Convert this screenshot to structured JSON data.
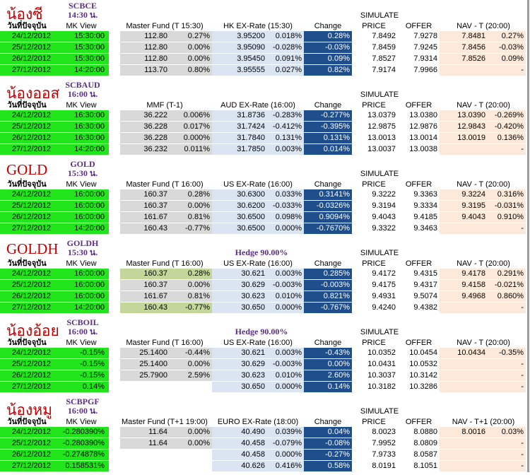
{
  "headers": {
    "date_label": "วันที่ปัจจุบัน",
    "mk_view": "MK View",
    "change": "Change",
    "price": "PRICE",
    "offer": "OFFER",
    "simulate": "SIMULATE"
  },
  "sections": [
    {
      "thai_name": "น้องซี",
      "code": "SCBCE",
      "time": "14:30 น.",
      "hedge": "",
      "fund_header": "Master Fund (T 15:30)",
      "fx_header": "HK EX-Rate (15:30)",
      "nav_header": "NAV - T (20:00)",
      "rows": [
        {
          "date": "24/12/2012",
          "mk": "15:30:00",
          "f1": "112.80",
          "f2": "0.27%",
          "x1": "3.95200",
          "x2": "0.018%",
          "chg": "0.28%",
          "price": "7.8492",
          "offer": "7.9278",
          "n1": "7.8481",
          "n2": "0.27%"
        },
        {
          "date": "25/12/2012",
          "mk": "15:30:00",
          "f1": "112.80",
          "f2": "0.00%",
          "x1": "3.95090",
          "x2": "-0.028%",
          "chg": "-0.03%",
          "price": "7.8459",
          "offer": "7.9245",
          "n1": "7.8456",
          "n2": "-0.03%"
        },
        {
          "date": "26/12/2012",
          "mk": "15:30:00",
          "f1": "112.80",
          "f2": "0.00%",
          "x1": "3.95450",
          "x2": "0.091%",
          "chg": "0.09%",
          "price": "7.8527",
          "offer": "7.9314",
          "n1": "7.8526",
          "n2": "0.09%"
        },
        {
          "date": "27/12/2012",
          "mk": "14:20:00",
          "f1": "113.70",
          "f2": "0.80%",
          "x1": "3.95555",
          "x2": "0.027%",
          "chg": "0.82%",
          "price": "7.9174",
          "offer": "7.9966",
          "n1": "",
          "n2": "-"
        }
      ]
    },
    {
      "thai_name": "น้องออส",
      "code": "SCBAUD",
      "time": "16:00 น.",
      "hedge": "",
      "fund_header": "MMF (T-1)",
      "fx_header": "AUD EX-Rate (16:00)",
      "nav_header": "NAV - T (20:00)",
      "rows": [
        {
          "date": "24/12/2012",
          "mk": "16:30:00",
          "f1": "36.222",
          "f2": "0.006%",
          "x1": "31.8736",
          "x2": "-0.283%",
          "chg": "-0.277%",
          "price": "13.0379",
          "offer": "13.0380",
          "n1": "13.0390",
          "n2": "-0.269%"
        },
        {
          "date": "25/12/2012",
          "mk": "16:30:00",
          "f1": "36.228",
          "f2": "0.017%",
          "x1": "31.7424",
          "x2": "-0.412%",
          "chg": "-0.395%",
          "price": "12.9875",
          "offer": "12.9876",
          "n1": "12.9843",
          "n2": "-0.420%"
        },
        {
          "date": "26/12/2012",
          "mk": "16:30:00",
          "f1": "36.228",
          "f2": "0.000%",
          "x1": "31.7840",
          "x2": "0.131%",
          "chg": "0.131%",
          "price": "13.0013",
          "offer": "13.0014",
          "n1": "13.0019",
          "n2": "0.136%"
        },
        {
          "date": "27/12/2012",
          "mk": "14:20:00",
          "f1": "36.232",
          "f2": "0.011%",
          "x1": "31.7850",
          "x2": "0.003%",
          "chg": "0.014%",
          "price": "13.0037",
          "offer": "13.0038",
          "n1": "",
          "n2": "-"
        }
      ]
    },
    {
      "thai_name": "GOLD",
      "code": "GOLD",
      "time": "15:30 น.",
      "hedge": "",
      "fund_header": "Master Fund (T 16:00)",
      "fx_header": "US EX-Rate (16:00)",
      "nav_header": "NAV - T (20:00)",
      "rows": [
        {
          "date": "24/12/2012",
          "mk": "16:00:00",
          "f1": "160.37",
          "f2": "0.28%",
          "x1": "30.6300",
          "x2": "0.033%",
          "chg": "0.3141%",
          "price": "9.3222",
          "offer": "9.3363",
          "n1": "9.3224",
          "n2": "0.316%"
        },
        {
          "date": "25/12/2012",
          "mk": "16:00:00",
          "f1": "160.37",
          "f2": "0.00%",
          "x1": "30.6200",
          "x2": "-0.033%",
          "chg": "-0.0326%",
          "price": "9.3194",
          "offer": "9.3334",
          "n1": "9.3195",
          "n2": "-0.031%"
        },
        {
          "date": "26/12/2012",
          "mk": "16:00:00",
          "f1": "161.67",
          "f2": "0.81%",
          "x1": "30.6500",
          "x2": "0.098%",
          "chg": "0.9094%",
          "price": "9.4043",
          "offer": "9.4185",
          "n1": "9.4043",
          "n2": "0.910%"
        },
        {
          "date": "27/12/2012",
          "mk": "14:20:00",
          "f1": "160.43",
          "f2": "-0.77%",
          "x1": "30.6500",
          "x2": "0.000%",
          "chg": "-0.7670%",
          "price": "9.3322",
          "offer": "9.3463",
          "n1": "",
          "n2": "-"
        }
      ]
    },
    {
      "thai_name": "GOLDH",
      "code": "GOLDH",
      "time": "15:30 น.",
      "hedge": "Hedge 90.00%",
      "fund_header": "Master Fund (T 16:00)",
      "fx_header": "US EX-Rate (16:00)",
      "nav_header": "NAV - T (20:00)",
      "rows": [
        {
          "date": "24/12/2012",
          "mk": "16:00:00",
          "f1": "160.37",
          "f2": "0.28%",
          "x1": "30.621",
          "x2": "0.003%",
          "chg": "0.285%",
          "price": "9.4172",
          "offer": "9.4315",
          "n1": "9.4178",
          "n2": "0.291%"
        },
        {
          "date": "25/12/2012",
          "mk": "16:00:00",
          "f1": "160.37",
          "f2": "0.00%",
          "x1": "30.629",
          "x2": "-0.003%",
          "chg": "-0.003%",
          "price": "9.4175",
          "offer": "9.4317",
          "n1": "9.4158",
          "n2": "-0.021%"
        },
        {
          "date": "26/12/2012",
          "mk": "16:00:00",
          "f1": "161.67",
          "f2": "0.81%",
          "x1": "30.623",
          "x2": "0.010%",
          "chg": "0.821%",
          "price": "9.4931",
          "offer": "9.5074",
          "n1": "9.4968",
          "n2": "0.860%"
        },
        {
          "date": "27/12/2012",
          "mk": "14:20:00",
          "f1": "160.43",
          "f2": "-0.77%",
          "x1": "30.650",
          "x2": "0.000%",
          "chg": "-0.767%",
          "price": "9.4240",
          "offer": "9.4382",
          "n1": "",
          "n2": "-"
        }
      ]
    },
    {
      "thai_name": "น้องอ้อย",
      "code": "SCBOIL",
      "time": "16:00 น.",
      "hedge": "Hedge 90.00%",
      "fund_header": "Master Fund (T 16:00)",
      "fx_header": "US EX-Rate (16:00)",
      "nav_header": "NAV - T (20:00)",
      "rows": [
        {
          "date": "24/12/2012",
          "mk": "-0.15%",
          "f1": "25.1400",
          "f2": "-0.44%",
          "x1": "30.621",
          "x2": "0.003%",
          "chg": "-0.43%",
          "price": "10.0352",
          "offer": "10.0454",
          "n1": "10.0434",
          "n2": "-0.35%"
        },
        {
          "date": "25/12/2012",
          "mk": "-0.15%",
          "f1": "25.1400",
          "f2": "0.00%",
          "x1": "30.629",
          "x2": "-0.003%",
          "chg": "0.00%",
          "price": "10.0431",
          "offer": "10.0532",
          "n1": "",
          "n2": "-"
        },
        {
          "date": "26/12/2012",
          "mk": "-0.15%",
          "f1": "25.7900",
          "f2": "2.59%",
          "x1": "30.623",
          "x2": "0.010%",
          "chg": "2.60%",
          "price": "10.3037",
          "offer": "10.3142",
          "n1": "",
          "n2": "-"
        },
        {
          "date": "27/12/2012",
          "mk": "0.14%",
          "f1": "",
          "f2": "",
          "x1": "30.650",
          "x2": "0.000%",
          "chg": "0.14%",
          "price": "10.3182",
          "offer": "10.3286",
          "n1": "",
          "n2": "-"
        }
      ]
    },
    {
      "thai_name": "น้องหมู",
      "code": "SCBPGF",
      "time": "16:00 น.",
      "hedge": "",
      "fund_header": "Master Fund (T+1 19:00)",
      "fx_header": "EURO EX-Rate (18:00)",
      "nav_header": "NAV - T+1 (20:00)",
      "rows": [
        {
          "date": "24/12/2012",
          "mk": "-0.280390%",
          "f1": "11.64",
          "f2": "0.00%",
          "x1": "40.490",
          "x2": "0.039%",
          "chg": "0.04%",
          "price": "8.0023",
          "offer": "8.0880",
          "n1": "8.0016",
          "n2": "0.03%"
        },
        {
          "date": "25/12/2012",
          "mk": "-0.280390%",
          "f1": "11.64",
          "f2": "0.00%",
          "x1": "40.458",
          "x2": "-0.079%",
          "chg": "-0.08%",
          "price": "7.9952",
          "offer": "8.0809",
          "n1": "",
          "n2": "-"
        },
        {
          "date": "26/12/2012",
          "mk": "-0.274878%",
          "f1": "",
          "f2": "",
          "x1": "40.458",
          "x2": "0.000%",
          "chg": "-0.27%",
          "price": "7.9733",
          "offer": "8.0587",
          "n1": "",
          "n2": "-"
        },
        {
          "date": "27/12/2012",
          "mk": "0.158531%",
          "f1": "",
          "f2": "",
          "x1": "40.626",
          "x2": "0.416%",
          "chg": "0.58%",
          "price": "8.0191",
          "offer": "8.1051",
          "n1": "",
          "n2": "-"
        }
      ]
    }
  ]
}
